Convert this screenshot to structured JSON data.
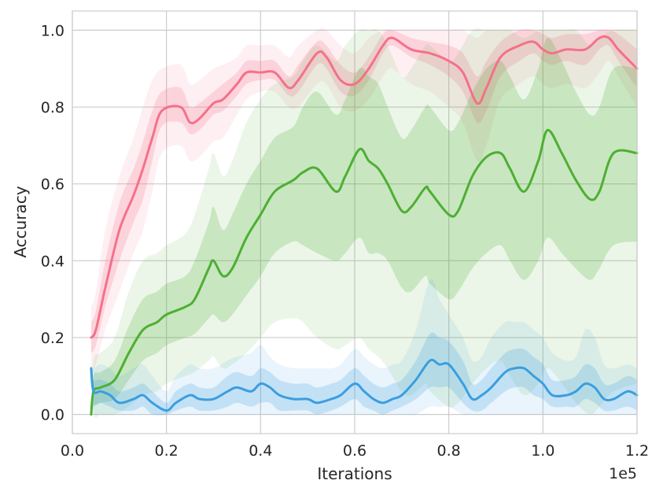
{
  "chart_data": {
    "type": "line",
    "title": "",
    "xlabel": "Iterations",
    "ylabel": "Accuracy",
    "x_offset_text": "1e5",
    "xlim": [
      0,
      1.2
    ],
    "ylim": [
      -0.05,
      1.05
    ],
    "grid": true,
    "legend": "none",
    "x_ticks": [
      "0.0",
      "0.2",
      "0.4",
      "0.6",
      "0.8",
      "1.0",
      "1.2"
    ],
    "y_ticks": [
      "0.0",
      "0.2",
      "0.4",
      "0.6",
      "0.8",
      "1.0"
    ],
    "series": [
      {
        "color": "#f5708a",
        "x": [
          0.04,
          0.05,
          0.07,
          0.1,
          0.13,
          0.15,
          0.17,
          0.19,
          0.23,
          0.25,
          0.27,
          0.3,
          0.32,
          0.35,
          0.37,
          0.4,
          0.43,
          0.46,
          0.48,
          0.52,
          0.54,
          0.57,
          0.6,
          0.63,
          0.66,
          0.68,
          0.72,
          0.76,
          0.8,
          0.83,
          0.86,
          0.88,
          0.91,
          0.95,
          0.98,
          1.0,
          1.02,
          1.05,
          1.09,
          1.12,
          1.14,
          1.16,
          1.2
        ],
        "y": [
          0.2,
          0.22,
          0.33,
          0.48,
          0.57,
          0.64,
          0.72,
          0.79,
          0.8,
          0.76,
          0.77,
          0.81,
          0.82,
          0.86,
          0.89,
          0.89,
          0.89,
          0.85,
          0.87,
          0.94,
          0.93,
          0.87,
          0.86,
          0.9,
          0.96,
          0.98,
          0.95,
          0.94,
          0.92,
          0.89,
          0.81,
          0.85,
          0.93,
          0.96,
          0.97,
          0.95,
          0.94,
          0.95,
          0.95,
          0.98,
          0.98,
          0.95,
          0.9
        ],
        "band_inner_low": [
          0.16,
          0.18,
          0.28,
          0.4,
          0.5,
          0.56,
          0.66,
          0.75,
          0.76,
          0.73,
          0.74,
          0.78,
          0.79,
          0.83,
          0.86,
          0.87,
          0.87,
          0.83,
          0.84,
          0.91,
          0.9,
          0.84,
          0.83,
          0.87,
          0.94,
          0.96,
          0.93,
          0.91,
          0.88,
          0.84,
          0.76,
          0.79,
          0.88,
          0.92,
          0.94,
          0.92,
          0.91,
          0.92,
          0.91,
          0.95,
          0.96,
          0.92,
          0.85
        ],
        "band_inner_high": [
          0.24,
          0.27,
          0.4,
          0.55,
          0.64,
          0.71,
          0.79,
          0.84,
          0.85,
          0.8,
          0.81,
          0.84,
          0.86,
          0.89,
          0.92,
          0.92,
          0.92,
          0.88,
          0.91,
          0.97,
          0.96,
          0.91,
          0.89,
          0.93,
          0.99,
          1.0,
          0.98,
          0.97,
          0.96,
          0.94,
          0.88,
          0.92,
          0.97,
          1.0,
          1.0,
          0.99,
          0.98,
          0.99,
          0.99,
          1.0,
          1.0,
          0.99,
          0.95
        ],
        "band_outer_low": [
          0.12,
          0.13,
          0.22,
          0.32,
          0.42,
          0.48,
          0.58,
          0.68,
          0.7,
          0.66,
          0.67,
          0.71,
          0.72,
          0.78,
          0.82,
          0.84,
          0.84,
          0.8,
          0.8,
          0.86,
          0.86,
          0.8,
          0.79,
          0.82,
          0.88,
          0.9,
          0.86,
          0.84,
          0.8,
          0.76,
          0.66,
          0.7,
          0.82,
          0.86,
          0.88,
          0.86,
          0.85,
          0.86,
          0.85,
          0.89,
          0.92,
          0.88,
          0.8
        ],
        "band_outer_high": [
          0.28,
          0.32,
          0.48,
          0.62,
          0.72,
          0.8,
          0.87,
          0.9,
          0.91,
          0.86,
          0.87,
          0.9,
          0.91,
          0.93,
          0.96,
          0.96,
          0.96,
          0.93,
          0.96,
          1.0,
          1.0,
          0.96,
          0.94,
          0.98,
          1.0,
          1.0,
          1.0,
          1.0,
          1.0,
          1.0,
          0.98,
          1.0,
          1.0,
          1.0,
          1.0,
          1.0,
          1.0,
          1.0,
          1.0,
          1.0,
          1.0,
          1.0,
          1.0
        ]
      },
      {
        "color": "#4daf32",
        "x": [
          0.04,
          0.045,
          0.06,
          0.09,
          0.12,
          0.15,
          0.18,
          0.2,
          0.24,
          0.26,
          0.29,
          0.3,
          0.32,
          0.34,
          0.37,
          0.4,
          0.43,
          0.47,
          0.49,
          0.52,
          0.56,
          0.58,
          0.61,
          0.63,
          0.65,
          0.67,
          0.7,
          0.72,
          0.75,
          0.76,
          0.8,
          0.82,
          0.85,
          0.88,
          0.91,
          0.93,
          0.96,
          0.99,
          1.01,
          1.04,
          1.07,
          1.1,
          1.12,
          1.15,
          1.2
        ],
        "y": [
          0.0,
          0.06,
          0.07,
          0.09,
          0.16,
          0.22,
          0.24,
          0.26,
          0.28,
          0.3,
          0.38,
          0.4,
          0.36,
          0.38,
          0.46,
          0.52,
          0.58,
          0.61,
          0.63,
          0.64,
          0.58,
          0.62,
          0.69,
          0.66,
          0.64,
          0.6,
          0.53,
          0.54,
          0.59,
          0.58,
          0.52,
          0.53,
          0.62,
          0.67,
          0.68,
          0.64,
          0.58,
          0.66,
          0.74,
          0.68,
          0.61,
          0.56,
          0.58,
          0.68,
          0.68
        ],
        "band_inner_low": [
          0.0,
          0.02,
          0.03,
          0.04,
          0.09,
          0.14,
          0.16,
          0.18,
          0.2,
          0.21,
          0.25,
          0.26,
          0.24,
          0.26,
          0.31,
          0.36,
          0.42,
          0.45,
          0.44,
          0.42,
          0.4,
          0.42,
          0.46,
          0.42,
          0.42,
          0.4,
          0.33,
          0.32,
          0.36,
          0.34,
          0.3,
          0.32,
          0.38,
          0.42,
          0.44,
          0.4,
          0.35,
          0.4,
          0.46,
          0.42,
          0.38,
          0.35,
          0.38,
          0.44,
          0.45
        ],
        "band_inner_high": [
          0.0,
          0.1,
          0.11,
          0.14,
          0.23,
          0.3,
          0.32,
          0.34,
          0.36,
          0.4,
          0.5,
          0.54,
          0.48,
          0.52,
          0.6,
          0.66,
          0.72,
          0.75,
          0.8,
          0.84,
          0.78,
          0.82,
          0.9,
          0.88,
          0.86,
          0.8,
          0.72,
          0.74,
          0.8,
          0.8,
          0.74,
          0.76,
          0.84,
          0.9,
          0.92,
          0.88,
          0.82,
          0.9,
          0.98,
          0.92,
          0.84,
          0.78,
          0.8,
          0.9,
          0.9
        ],
        "band_outer_low": [
          0.0,
          0.0,
          0.0,
          0.0,
          0.02,
          0.05,
          0.06,
          0.08,
          0.1,
          0.11,
          0.14,
          0.15,
          0.12,
          0.13,
          0.16,
          0.2,
          0.24,
          0.25,
          0.24,
          0.2,
          0.17,
          0.18,
          0.2,
          0.17,
          0.15,
          0.12,
          0.06,
          0.05,
          0.08,
          0.06,
          0.02,
          0.03,
          0.08,
          0.12,
          0.14,
          0.1,
          0.05,
          0.08,
          0.12,
          0.08,
          0.03,
          0.0,
          0.02,
          0.06,
          0.08
        ],
        "band_outer_high": [
          0.0,
          0.14,
          0.16,
          0.2,
          0.32,
          0.4,
          0.42,
          0.44,
          0.47,
          0.52,
          0.64,
          0.68,
          0.62,
          0.66,
          0.76,
          0.82,
          0.86,
          0.88,
          0.92,
          0.96,
          0.92,
          0.96,
          1.0,
          1.0,
          1.0,
          0.96,
          0.88,
          0.9,
          0.96,
          0.96,
          0.92,
          0.94,
          1.0,
          1.0,
          1.0,
          1.0,
          0.98,
          1.0,
          1.0,
          1.0,
          1.0,
          0.96,
          0.98,
          1.0,
          1.0
        ]
      },
      {
        "color": "#3a9ee0",
        "x": [
          0.04,
          0.045,
          0.06,
          0.08,
          0.1,
          0.13,
          0.15,
          0.17,
          0.2,
          0.22,
          0.25,
          0.27,
          0.3,
          0.33,
          0.35,
          0.38,
          0.4,
          0.42,
          0.44,
          0.47,
          0.5,
          0.52,
          0.55,
          0.57,
          0.6,
          0.62,
          0.64,
          0.66,
          0.68,
          0.7,
          0.73,
          0.76,
          0.78,
          0.8,
          0.83,
          0.85,
          0.87,
          0.89,
          0.92,
          0.94,
          0.96,
          0.98,
          1.0,
          1.02,
          1.05,
          1.07,
          1.09,
          1.11,
          1.13,
          1.15,
          1.18,
          1.2
        ],
        "y": [
          0.12,
          0.06,
          0.06,
          0.05,
          0.03,
          0.04,
          0.05,
          0.03,
          0.01,
          0.03,
          0.05,
          0.04,
          0.04,
          0.06,
          0.07,
          0.06,
          0.08,
          0.07,
          0.05,
          0.04,
          0.04,
          0.03,
          0.04,
          0.05,
          0.08,
          0.06,
          0.04,
          0.03,
          0.04,
          0.05,
          0.09,
          0.14,
          0.13,
          0.13,
          0.08,
          0.04,
          0.05,
          0.07,
          0.11,
          0.12,
          0.12,
          0.1,
          0.08,
          0.05,
          0.05,
          0.06,
          0.08,
          0.07,
          0.04,
          0.04,
          0.06,
          0.05
        ],
        "band_inner_low": [
          0.12,
          0.03,
          0.03,
          0.02,
          0.01,
          0.01,
          0.02,
          0.0,
          0.0,
          0.01,
          0.02,
          0.01,
          0.01,
          0.02,
          0.03,
          0.02,
          0.03,
          0.03,
          0.01,
          0.01,
          0.01,
          0.0,
          0.01,
          0.02,
          0.04,
          0.02,
          0.01,
          0.0,
          0.01,
          0.02,
          0.04,
          0.07,
          0.07,
          0.07,
          0.03,
          0.01,
          0.01,
          0.03,
          0.06,
          0.07,
          0.07,
          0.05,
          0.04,
          0.02,
          0.02,
          0.02,
          0.04,
          0.03,
          0.01,
          0.01,
          0.02,
          0.01
        ],
        "band_inner_high": [
          0.12,
          0.09,
          0.09,
          0.08,
          0.06,
          0.07,
          0.08,
          0.06,
          0.03,
          0.06,
          0.08,
          0.07,
          0.07,
          0.1,
          0.11,
          0.1,
          0.12,
          0.11,
          0.09,
          0.08,
          0.08,
          0.07,
          0.08,
          0.09,
          0.12,
          0.1,
          0.08,
          0.07,
          0.08,
          0.09,
          0.14,
          0.21,
          0.2,
          0.19,
          0.14,
          0.08,
          0.09,
          0.12,
          0.16,
          0.17,
          0.17,
          0.15,
          0.13,
          0.09,
          0.09,
          0.1,
          0.13,
          0.12,
          0.08,
          0.08,
          0.1,
          0.09
        ],
        "band_outer_low": [
          0.12,
          0.0,
          0.0,
          0.0,
          0.0,
          0.0,
          0.0,
          0.0,
          0.0,
          0.0,
          0.0,
          0.0,
          0.0,
          0.0,
          0.0,
          0.0,
          0.0,
          0.0,
          0.0,
          0.0,
          0.0,
          0.0,
          0.0,
          0.0,
          0.0,
          0.0,
          0.0,
          0.0,
          0.0,
          0.0,
          0.0,
          0.02,
          0.02,
          0.02,
          0.0,
          0.0,
          0.0,
          0.0,
          0.0,
          0.0,
          0.0,
          0.0,
          0.0,
          0.0,
          0.0,
          0.0,
          0.0,
          0.0,
          0.0,
          0.0,
          0.0,
          0.0
        ],
        "band_outer_high": [
          0.12,
          0.12,
          0.13,
          0.12,
          0.1,
          0.12,
          0.13,
          0.1,
          0.06,
          0.1,
          0.13,
          0.12,
          0.12,
          0.14,
          0.15,
          0.16,
          0.18,
          0.15,
          0.13,
          0.12,
          0.12,
          0.12,
          0.12,
          0.13,
          0.17,
          0.15,
          0.13,
          0.12,
          0.13,
          0.14,
          0.22,
          0.35,
          0.3,
          0.26,
          0.2,
          0.14,
          0.15,
          0.2,
          0.24,
          0.24,
          0.24,
          0.22,
          0.2,
          0.16,
          0.14,
          0.15,
          0.22,
          0.2,
          0.13,
          0.12,
          0.13,
          0.12
        ]
      }
    ]
  }
}
